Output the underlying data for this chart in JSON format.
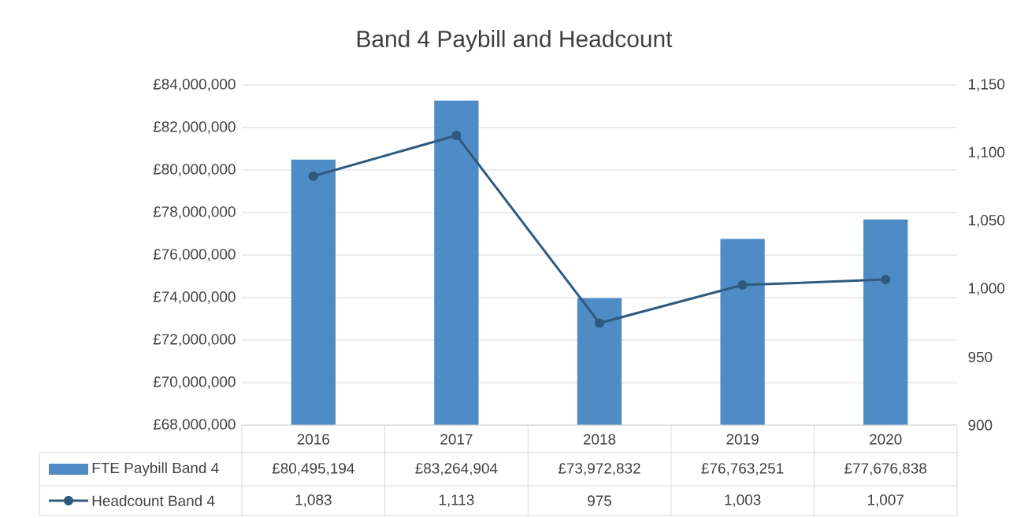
{
  "chart_data": {
    "type": "bar",
    "title": "Band 4 Paybill and Headcount",
    "categories": [
      "2016",
      "2017",
      "2018",
      "2019",
      "2020"
    ],
    "series": [
      {
        "name": "FTE Paybill Band 4",
        "color": "#4f8bc4",
        "values": [
          80495194,
          83264904,
          73972832,
          76763251,
          77676838
        ],
        "value_labels": [
          "£80,495,194",
          "£83,264,904",
          "£73,972,832",
          "£76,763,251",
          "£77,676,838"
        ]
      },
      {
        "name": "Headcount Band 4",
        "type": "line",
        "axis": "y2",
        "color": "#2e5a80",
        "values": [
          1083,
          1113,
          975,
          1003,
          1007
        ],
        "value_labels": [
          "1,083",
          "1,113",
          "975",
          "1,003",
          "1,007"
        ]
      }
    ],
    "ylim": [
      68000000,
      84000000
    ],
    "yticks": [
      {
        "value": 68000000,
        "label": "£68,000,000"
      },
      {
        "value": 70000000,
        "label": "£70,000,000"
      },
      {
        "value": 72000000,
        "label": "£72,000,000"
      },
      {
        "value": 74000000,
        "label": "£74,000,000"
      },
      {
        "value": 76000000,
        "label": "£76,000,000"
      },
      {
        "value": 78000000,
        "label": "£78,000,000"
      },
      {
        "value": 80000000,
        "label": "£80,000,000"
      },
      {
        "value": 82000000,
        "label": "£82,000,000"
      },
      {
        "value": 84000000,
        "label": "£84,000,000"
      }
    ],
    "y2lim": [
      900,
      1150
    ],
    "y2ticks": [
      900,
      950,
      {
        "value": 1000,
        "label": "1,000"
      },
      {
        "value": 1050,
        "label": "1,050"
      },
      {
        "value": 1100,
        "label": "1,100"
      },
      {
        "value": 1150,
        "label": "1,150"
      }
    ],
    "grid": "y",
    "legend": "bottom",
    "marker": "circle",
    "line_style": "solid"
  }
}
